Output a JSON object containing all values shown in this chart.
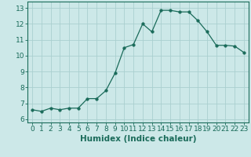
{
  "x": [
    0,
    1,
    2,
    3,
    4,
    5,
    6,
    7,
    8,
    9,
    10,
    11,
    12,
    13,
    14,
    15,
    16,
    17,
    18,
    19,
    20,
    21,
    22,
    23
  ],
  "y": [
    6.6,
    6.5,
    6.7,
    6.6,
    6.7,
    6.7,
    7.3,
    7.3,
    7.8,
    8.9,
    10.5,
    10.7,
    12.0,
    11.5,
    12.85,
    12.85,
    12.75,
    12.75,
    12.2,
    11.5,
    10.65,
    10.65,
    10.6,
    10.2
  ],
  "line_color": "#1a6b5a",
  "marker": "o",
  "marker_size": 2.5,
  "bg_color": "#cce8e8",
  "grid_color": "#aacfcf",
  "xlabel": "Humidex (Indice chaleur)",
  "ylim": [
    5.8,
    13.4
  ],
  "xlim": [
    -0.5,
    23.5
  ],
  "yticks": [
    6,
    7,
    8,
    9,
    10,
    11,
    12,
    13
  ],
  "xticks": [
    0,
    1,
    2,
    3,
    4,
    5,
    6,
    7,
    8,
    9,
    10,
    11,
    12,
    13,
    14,
    15,
    16,
    17,
    18,
    19,
    20,
    21,
    22,
    23
  ],
  "tick_label_size": 6.5,
  "xlabel_size": 7.5
}
